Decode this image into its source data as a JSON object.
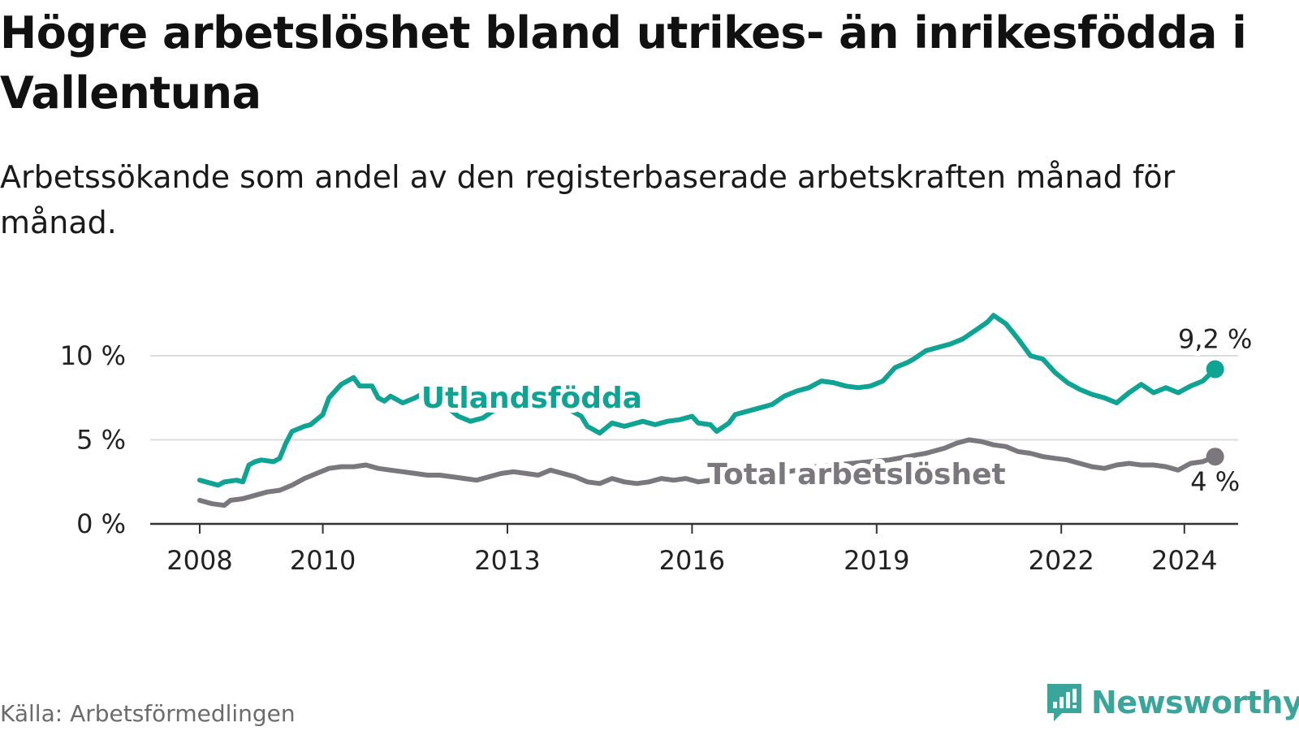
{
  "title": "Högre arbetslöshet bland utrikes- än inrikesfödda i Vallentuna",
  "subtitle": "Arbetssökande som andel av den registerbaserade arbetskraften månad för månad.",
  "source": "Källa: Arbetsförmedlingen",
  "brand": {
    "name": "Newsworthy",
    "icon": "newsworthy-logo-icon"
  },
  "colors": {
    "foreign": "#0fa394",
    "total": "#7a787d",
    "grid": "#dcdcdc",
    "axis": "#333333",
    "text": "#222222"
  },
  "chart_data": {
    "type": "line",
    "title": "Högre arbetslöshet bland utrikes- än inrikesfödda i Vallentuna",
    "subtitle": "Arbetssökande som andel av den registerbaserade arbetskraften månad för månad.",
    "x_ticks": [
      "2008",
      "2010",
      "2013",
      "2016",
      "2019",
      "2022",
      "2024"
    ],
    "y_ticks": [
      "0 %",
      "5 %",
      "10 %"
    ],
    "xlim": [
      2007.2,
      2025.0
    ],
    "ylim": [
      0,
      10
    ],
    "grid": true,
    "series": [
      {
        "name": "Utlandsfödda",
        "end_label": "9,2 %",
        "points": [
          [
            2008.0,
            2.6
          ],
          [
            2008.2,
            2.4
          ],
          [
            2008.3,
            2.3
          ],
          [
            2008.4,
            2.5
          ],
          [
            2008.6,
            2.6
          ],
          [
            2008.7,
            2.5
          ],
          [
            2008.8,
            3.5
          ],
          [
            2008.9,
            3.7
          ],
          [
            2009.0,
            3.8
          ],
          [
            2009.2,
            3.7
          ],
          [
            2009.3,
            3.9
          ],
          [
            2009.4,
            4.8
          ],
          [
            2009.5,
            5.5
          ],
          [
            2009.7,
            5.8
          ],
          [
            2009.8,
            5.9
          ],
          [
            2010.0,
            6.5
          ],
          [
            2010.1,
            7.5
          ],
          [
            2010.3,
            8.3
          ],
          [
            2010.5,
            8.7
          ],
          [
            2010.6,
            8.2
          ],
          [
            2010.8,
            8.2
          ],
          [
            2010.9,
            7.5
          ],
          [
            2011.0,
            7.3
          ],
          [
            2011.1,
            7.6
          ],
          [
            2011.3,
            7.2
          ],
          [
            2011.5,
            7.5
          ],
          [
            2011.6,
            7.7
          ],
          [
            2011.8,
            7.5
          ],
          [
            2012.0,
            7.0
          ],
          [
            2012.2,
            6.4
          ],
          [
            2012.4,
            6.1
          ],
          [
            2012.6,
            6.3
          ],
          [
            2012.8,
            6.8
          ],
          [
            2013.0,
            7.0
          ],
          [
            2013.2,
            7.4
          ],
          [
            2013.4,
            7.8
          ],
          [
            2013.6,
            7.5
          ],
          [
            2013.8,
            7.4
          ],
          [
            2014.0,
            6.8
          ],
          [
            2014.2,
            6.4
          ],
          [
            2014.3,
            5.8
          ],
          [
            2014.5,
            5.4
          ],
          [
            2014.7,
            6.0
          ],
          [
            2014.9,
            5.8
          ],
          [
            2015.0,
            5.9
          ],
          [
            2015.2,
            6.1
          ],
          [
            2015.4,
            5.9
          ],
          [
            2015.6,
            6.1
          ],
          [
            2015.8,
            6.2
          ],
          [
            2016.0,
            6.4
          ],
          [
            2016.1,
            6.0
          ],
          [
            2016.3,
            5.9
          ],
          [
            2016.4,
            5.5
          ],
          [
            2016.6,
            6.0
          ],
          [
            2016.7,
            6.5
          ],
          [
            2016.9,
            6.7
          ],
          [
            2017.1,
            6.9
          ],
          [
            2017.3,
            7.1
          ],
          [
            2017.5,
            7.6
          ],
          [
            2017.7,
            7.9
          ],
          [
            2017.9,
            8.1
          ],
          [
            2018.1,
            8.5
          ],
          [
            2018.3,
            8.4
          ],
          [
            2018.5,
            8.2
          ],
          [
            2018.7,
            8.1
          ],
          [
            2018.9,
            8.2
          ],
          [
            2019.1,
            8.5
          ],
          [
            2019.3,
            9.3
          ],
          [
            2019.5,
            9.6
          ],
          [
            2019.6,
            9.8
          ],
          [
            2019.8,
            10.3
          ],
          [
            2020.0,
            10.5
          ],
          [
            2020.2,
            10.7
          ],
          [
            2020.4,
            11.0
          ],
          [
            2020.6,
            11.5
          ],
          [
            2020.8,
            12.0
          ],
          [
            2020.9,
            12.4
          ],
          [
            2021.1,
            11.9
          ],
          [
            2021.3,
            11.0
          ],
          [
            2021.5,
            10.0
          ],
          [
            2021.7,
            9.8
          ],
          [
            2021.9,
            9.0
          ],
          [
            2022.1,
            8.4
          ],
          [
            2022.3,
            8.0
          ],
          [
            2022.5,
            7.7
          ],
          [
            2022.7,
            7.5
          ],
          [
            2022.9,
            7.2
          ],
          [
            2023.1,
            7.8
          ],
          [
            2023.3,
            8.3
          ],
          [
            2023.5,
            7.8
          ],
          [
            2023.7,
            8.1
          ],
          [
            2023.9,
            7.8
          ],
          [
            2024.1,
            8.2
          ],
          [
            2024.3,
            8.5
          ],
          [
            2024.5,
            9.2
          ]
        ]
      },
      {
        "name": "Total arbetslöshet",
        "end_label": "4 %",
        "points": [
          [
            2008.0,
            1.4
          ],
          [
            2008.2,
            1.2
          ],
          [
            2008.4,
            1.1
          ],
          [
            2008.5,
            1.4
          ],
          [
            2008.7,
            1.5
          ],
          [
            2008.9,
            1.7
          ],
          [
            2009.1,
            1.9
          ],
          [
            2009.3,
            2.0
          ],
          [
            2009.5,
            2.3
          ],
          [
            2009.7,
            2.7
          ],
          [
            2009.9,
            3.0
          ],
          [
            2010.1,
            3.3
          ],
          [
            2010.3,
            3.4
          ],
          [
            2010.5,
            3.4
          ],
          [
            2010.7,
            3.5
          ],
          [
            2010.9,
            3.3
          ],
          [
            2011.1,
            3.2
          ],
          [
            2011.3,
            3.1
          ],
          [
            2011.5,
            3.0
          ],
          [
            2011.7,
            2.9
          ],
          [
            2011.9,
            2.9
          ],
          [
            2012.1,
            2.8
          ],
          [
            2012.3,
            2.7
          ],
          [
            2012.5,
            2.6
          ],
          [
            2012.7,
            2.8
          ],
          [
            2012.9,
            3.0
          ],
          [
            2013.1,
            3.1
          ],
          [
            2013.3,
            3.0
          ],
          [
            2013.5,
            2.9
          ],
          [
            2013.7,
            3.2
          ],
          [
            2013.9,
            3.0
          ],
          [
            2014.1,
            2.8
          ],
          [
            2014.3,
            2.5
          ],
          [
            2014.5,
            2.4
          ],
          [
            2014.7,
            2.7
          ],
          [
            2014.9,
            2.5
          ],
          [
            2015.1,
            2.4
          ],
          [
            2015.3,
            2.5
          ],
          [
            2015.5,
            2.7
          ],
          [
            2015.7,
            2.6
          ],
          [
            2015.9,
            2.7
          ],
          [
            2016.1,
            2.5
          ],
          [
            2016.3,
            2.6
          ],
          [
            2016.5,
            2.5
          ],
          [
            2016.8,
            2.7
          ],
          [
            2017.1,
            2.8
          ],
          [
            2017.4,
            3.0
          ],
          [
            2017.7,
            3.2
          ],
          [
            2018.0,
            3.4
          ],
          [
            2018.3,
            3.5
          ],
          [
            2018.6,
            3.6
          ],
          [
            2018.9,
            3.7
          ],
          [
            2019.2,
            3.8
          ],
          [
            2019.5,
            4.0
          ],
          [
            2019.8,
            4.2
          ],
          [
            2020.1,
            4.5
          ],
          [
            2020.3,
            4.8
          ],
          [
            2020.5,
            5.0
          ],
          [
            2020.7,
            4.9
          ],
          [
            2020.9,
            4.7
          ],
          [
            2021.1,
            4.6
          ],
          [
            2021.3,
            4.3
          ],
          [
            2021.5,
            4.2
          ],
          [
            2021.7,
            4.0
          ],
          [
            2021.9,
            3.9
          ],
          [
            2022.1,
            3.8
          ],
          [
            2022.3,
            3.6
          ],
          [
            2022.5,
            3.4
          ],
          [
            2022.7,
            3.3
          ],
          [
            2022.9,
            3.5
          ],
          [
            2023.1,
            3.6
          ],
          [
            2023.3,
            3.5
          ],
          [
            2023.5,
            3.5
          ],
          [
            2023.7,
            3.4
          ],
          [
            2023.9,
            3.2
          ],
          [
            2024.1,
            3.6
          ],
          [
            2024.3,
            3.7
          ],
          [
            2024.5,
            4.0
          ]
        ]
      }
    ]
  }
}
